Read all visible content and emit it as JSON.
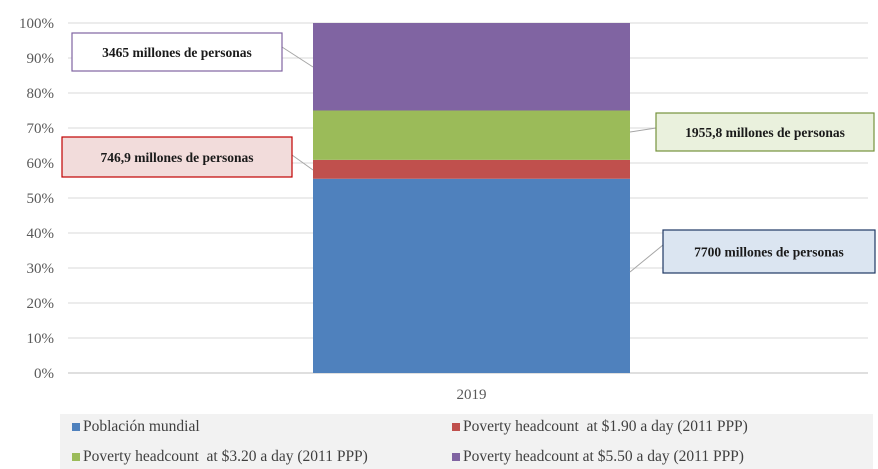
{
  "chart_data": {
    "type": "bar",
    "stacked": true,
    "categories": [
      "2019"
    ],
    "series": [
      {
        "name": "Población mundial",
        "values": [
          55.5
        ],
        "color": "#4f81bd"
      },
      {
        "name": "Poverty headcount  at $1.90 a day (2011 PPP)",
        "values": [
          5.4
        ],
        "color": "#c0504d"
      },
      {
        "name": "Poverty headcount  at $3.20 a day (2011 PPP)",
        "values": [
          14.1
        ],
        "color": "#9bbb59"
      },
      {
        "name": "Poverty headcount at $5.50 a day (2011 PPP)",
        "values": [
          25.0
        ],
        "color": "#8064a2"
      }
    ],
    "y_ticks": [
      "0%",
      "10%",
      "20%",
      "30%",
      "40%",
      "50%",
      "60%",
      "70%",
      "80%",
      "90%",
      "100%"
    ],
    "ylim": [
      0,
      100
    ],
    "grid": true,
    "legend_position": "bottom",
    "annotations": [
      {
        "series": "Poverty headcount at $5.50 a day (2011 PPP)",
        "text": "3465 millones de personas",
        "side": "left",
        "fill": "#ffffff",
        "border": "#8064a2"
      },
      {
        "series": "Poverty headcount  at $3.20 a day (2011 PPP)",
        "text": "1955,8 millones de personas",
        "side": "right",
        "fill": "#eaf1dd",
        "border": "#76923c"
      },
      {
        "series": "Poverty headcount  at $1.90 a day (2011 PPP)",
        "text": "746,9 millones de personas",
        "side": "left",
        "fill": "#f2dcdb",
        "border": "#c00000"
      },
      {
        "series": "Población mundial",
        "text": "7700 millones  de personas",
        "side": "right",
        "fill": "#dbe5f1",
        "border": "#1f3864"
      }
    ]
  }
}
